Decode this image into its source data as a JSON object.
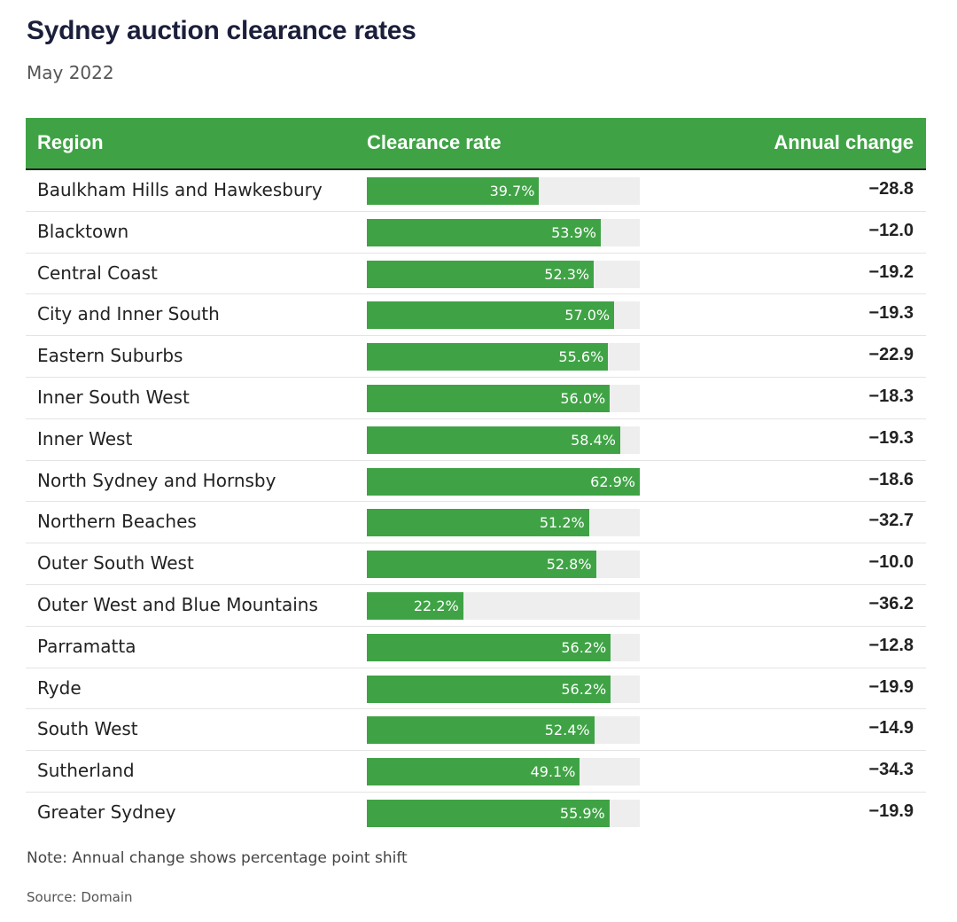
{
  "chart_data": {
    "type": "table",
    "title": "Sydney auction clearance rates",
    "subtitle": "May 2022",
    "columns": [
      "Region",
      "Clearance rate",
      "Annual change"
    ],
    "bar_max": 62.9,
    "rows": [
      {
        "region": "Baulkham Hills and Hawkesbury",
        "rate": 39.7,
        "rate_label": "39.7%",
        "change": "−28.8"
      },
      {
        "region": "Blacktown",
        "rate": 53.9,
        "rate_label": "53.9%",
        "change": "−12.0"
      },
      {
        "region": "Central Coast",
        "rate": 52.3,
        "rate_label": "52.3%",
        "change": "−19.2"
      },
      {
        "region": "City and Inner South",
        "rate": 57.0,
        "rate_label": "57.0%",
        "change": "−19.3"
      },
      {
        "region": "Eastern Suburbs",
        "rate": 55.6,
        "rate_label": "55.6%",
        "change": "−22.9"
      },
      {
        "region": "Inner South West",
        "rate": 56.0,
        "rate_label": "56.0%",
        "change": "−18.3"
      },
      {
        "region": "Inner West",
        "rate": 58.4,
        "rate_label": "58.4%",
        "change": "−19.3"
      },
      {
        "region": "North Sydney and Hornsby",
        "rate": 62.9,
        "rate_label": "62.9%",
        "change": "−18.6"
      },
      {
        "region": "Northern Beaches",
        "rate": 51.2,
        "rate_label": "51.2%",
        "change": "−32.7"
      },
      {
        "region": "Outer South West",
        "rate": 52.8,
        "rate_label": "52.8%",
        "change": "−10.0"
      },
      {
        "region": "Outer West and Blue Mountains",
        "rate": 22.2,
        "rate_label": "22.2%",
        "change": "−36.2"
      },
      {
        "region": "Parramatta",
        "rate": 56.2,
        "rate_label": "56.2%",
        "change": "−12.8"
      },
      {
        "region": "Ryde",
        "rate": 56.2,
        "rate_label": "56.2%",
        "change": "−19.9"
      },
      {
        "region": "South West",
        "rate": 52.4,
        "rate_label": "52.4%",
        "change": "−14.9"
      },
      {
        "region": "Sutherland",
        "rate": 49.1,
        "rate_label": "49.1%",
        "change": "−34.3"
      },
      {
        "region": "Greater Sydney",
        "rate": 55.9,
        "rate_label": "55.9%",
        "change": "−19.9"
      }
    ],
    "note": "Note: Annual change shows percentage point shift",
    "source": "Source: Domain"
  },
  "colors": {
    "accent": "#3fa345",
    "track": "#eeeeee",
    "title": "#1b1f3b"
  }
}
